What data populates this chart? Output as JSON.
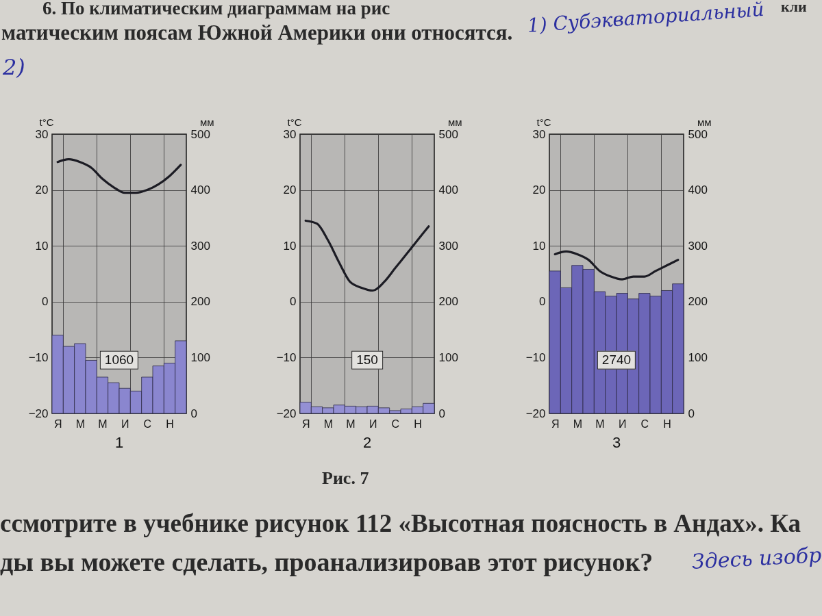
{
  "chart_data": [
    {
      "type": "other",
      "annotations": [
        "6. По климатическим диаграммам на рис",
        "кли",
        "матическим поясам Южной Америки они относятся.",
        "1) Субэкваториальный",
        "2)"
      ]
    },
    {
      "type": "bar",
      "title": "1",
      "ylabel": "t°C",
      "y2label": "мм",
      "categories": [
        "Я",
        null,
        "М",
        null,
        "М",
        null,
        "И",
        null,
        "С",
        null,
        "Н",
        null
      ],
      "ylim": [
        -20,
        30
      ],
      "yticks": [
        -20,
        -10,
        0,
        10,
        20,
        30
      ],
      "y2lim": [
        0,
        500
      ],
      "y2ticks": [
        0,
        100,
        200,
        300,
        400,
        500
      ],
      "grid": true,
      "annotations": [
        "1060"
      ],
      "series": [
        {
          "type": "bar",
          "axis": "y2",
          "color": "#8a86cf",
          "values": [
            140,
            120,
            125,
            95,
            65,
            55,
            45,
            40,
            65,
            85,
            90,
            130
          ]
        },
        {
          "type": "line",
          "color": "#1c1c24",
          "values": [
            25,
            25.5,
            25,
            24,
            22,
            20.5,
            19.5,
            19.5,
            20,
            21,
            22.5,
            24.5
          ]
        }
      ]
    },
    {
      "type": "bar",
      "title": "2",
      "ylabel": "t°C",
      "y2label": "мм",
      "categories": [
        "Я",
        null,
        "М",
        null,
        "М",
        null,
        "И",
        null,
        "С",
        null,
        "Н",
        null
      ],
      "ylim": [
        -20,
        30
      ],
      "yticks": [
        -20,
        -10,
        0,
        10,
        20,
        30
      ],
      "y2lim": [
        0,
        500
      ],
      "y2ticks": [
        0,
        100,
        200,
        300,
        400,
        500
      ],
      "grid": true,
      "annotations": [
        "150"
      ],
      "series": [
        {
          "type": "bar",
          "axis": "y2",
          "color": "#9490d4",
          "values": [
            20,
            12,
            10,
            15,
            13,
            12,
            13,
            10,
            5,
            8,
            12,
            18
          ]
        },
        {
          "type": "line",
          "color": "#1c1c24",
          "values": [
            14.5,
            14,
            11,
            7,
            3.5,
            2.5,
            2,
            3.5,
            6,
            8.5,
            11,
            13.5
          ]
        }
      ]
    },
    {
      "type": "bar",
      "title": "3",
      "ylabel": "t°C",
      "y2label": "мм",
      "categories": [
        "Я",
        null,
        "М",
        null,
        "М",
        null,
        "И",
        null,
        "С",
        null,
        "Н",
        null
      ],
      "ylim": [
        -20,
        30
      ],
      "yticks": [
        -20,
        -10,
        0,
        10,
        20,
        30
      ],
      "y2lim": [
        0,
        500
      ],
      "y2ticks": [
        0,
        100,
        200,
        300,
        400,
        500
      ],
      "grid": true,
      "annotations": [
        "2740"
      ],
      "series": [
        {
          "type": "bar",
          "axis": "y2",
          "color": "#6c66b8",
          "values": [
            255,
            225,
            265,
            258,
            218,
            210,
            215,
            205,
            215,
            210,
            220,
            232
          ]
        },
        {
          "type": "line",
          "color": "#1c1c24",
          "values": [
            8.5,
            9,
            8.5,
            7.5,
            5.5,
            4.5,
            4,
            4.5,
            4.5,
            5.5,
            6.5,
            7.5
          ]
        }
      ]
    },
    {
      "type": "other",
      "annotations": [
        "Рис. 7",
        "ссмотрите в учебнике рисунок 112 «Высотная поясность в Андах». Ка",
        "ды вы можете сделать, проанализировав этот рисунок?",
        "Здесь изобр"
      ]
    }
  ]
}
